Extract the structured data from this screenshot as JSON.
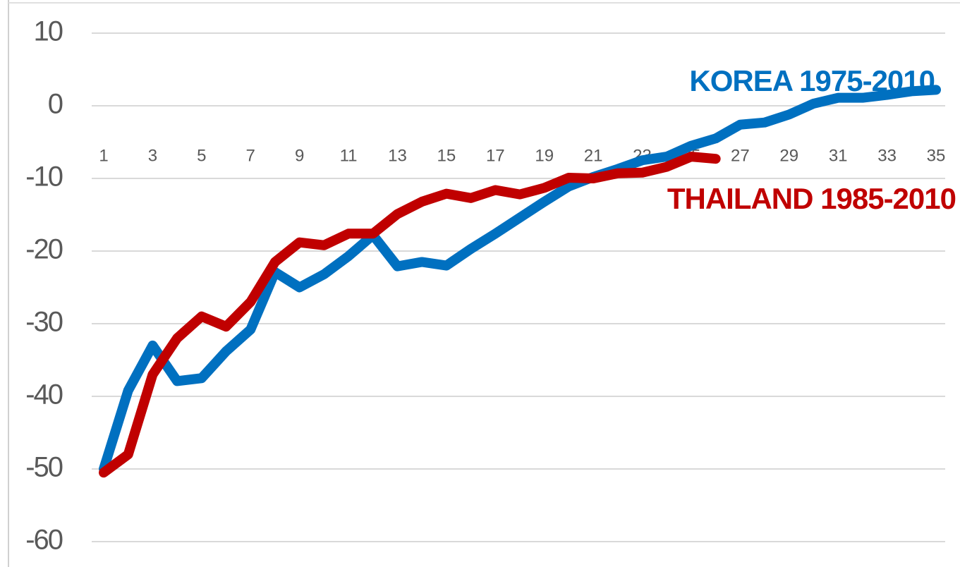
{
  "chart_data": {
    "type": "line",
    "x": [
      1,
      2,
      3,
      4,
      5,
      6,
      7,
      8,
      9,
      10,
      11,
      12,
      13,
      14,
      15,
      16,
      17,
      18,
      19,
      20,
      21,
      22,
      23,
      24,
      25,
      26,
      27,
      28,
      29,
      30,
      31,
      32,
      33,
      34,
      35
    ],
    "xlim": [
      1,
      35
    ],
    "xticks": [
      1,
      3,
      5,
      7,
      9,
      11,
      13,
      15,
      17,
      19,
      21,
      23,
      25,
      27,
      29,
      31,
      33,
      35
    ],
    "ylim": [
      -60,
      10
    ],
    "yticks": [
      -60,
      -50,
      -40,
      -30,
      -20,
      -10,
      0,
      10
    ],
    "grid": true,
    "series": [
      {
        "name": "KOREA 1975-2010",
        "color": "#0070c0",
        "values": [
          -50,
          -39.2,
          -33,
          -37.9,
          -37.5,
          -33.8,
          -30.8,
          -22.9,
          -25,
          -23.2,
          -20.7,
          -17.8,
          -22.1,
          -21.5,
          -22,
          -19.7,
          -17.6,
          -15.4,
          -13.2,
          -11.1,
          -9.8,
          -8.7,
          -7.5,
          -7,
          -5.5,
          -4.5,
          -2.6,
          -2.3,
          -1.2,
          0.3,
          1.1,
          1.1,
          1.5,
          2,
          2.2
        ]
      },
      {
        "name": "THAILAND 1985-2010",
        "color": "#c00000",
        "values": [
          -50.5,
          -48,
          -37,
          -32,
          -29,
          -30.4,
          -27,
          -21.5,
          -18.8,
          -19.2,
          -17.6,
          -17.6,
          -14.9,
          -13.2,
          -12.1,
          -12.7,
          -11.6,
          -12.2,
          -11.3,
          -9.9,
          -10,
          -9.3,
          -9.2,
          -8.4,
          -7,
          -7.3,
          null,
          null,
          null,
          null,
          null,
          null,
          null,
          null,
          null
        ]
      }
    ]
  }
}
